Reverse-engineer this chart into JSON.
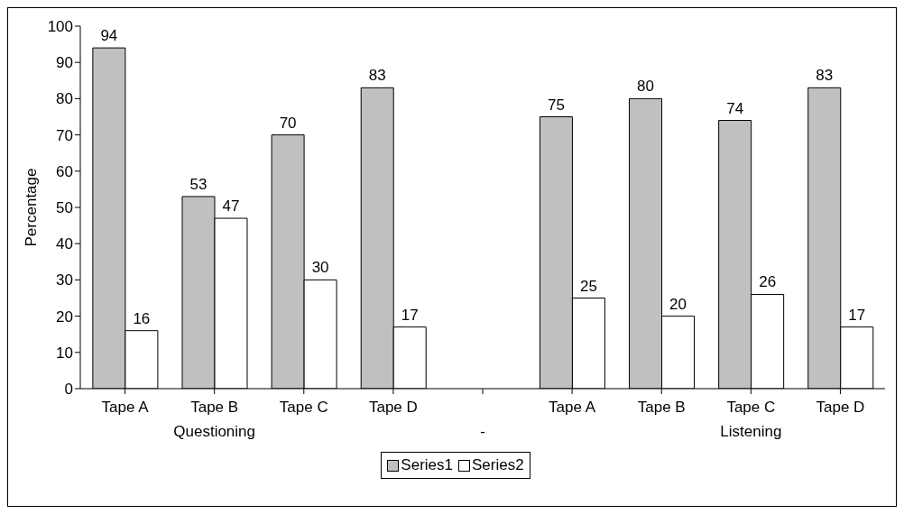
{
  "chart_data": {
    "type": "bar",
    "ylabel": "Percentage",
    "categories": [
      "Tape A",
      "Tape B",
      "Tape C",
      "Tape D",
      null,
      "Tape A",
      "Tape B",
      "Tape C",
      "Tape D"
    ],
    "series": [
      {
        "name": "Series1",
        "color": "#c0c0c0",
        "values": [
          94,
          53,
          70,
          83,
          null,
          75,
          80,
          74,
          83
        ]
      },
      {
        "name": "Series2",
        "color": "#ffffff",
        "values": [
          16,
          47,
          30,
          17,
          null,
          25,
          20,
          26,
          17
        ]
      }
    ],
    "ylim": [
      0,
      100
    ],
    "yticks": [
      0,
      10,
      20,
      30,
      40,
      50,
      60,
      70,
      80,
      90,
      100
    ],
    "annotations": [
      "Questioning",
      "-",
      "Listening"
    ],
    "data_labels": true,
    "grid": false,
    "legend": "bottom"
  }
}
